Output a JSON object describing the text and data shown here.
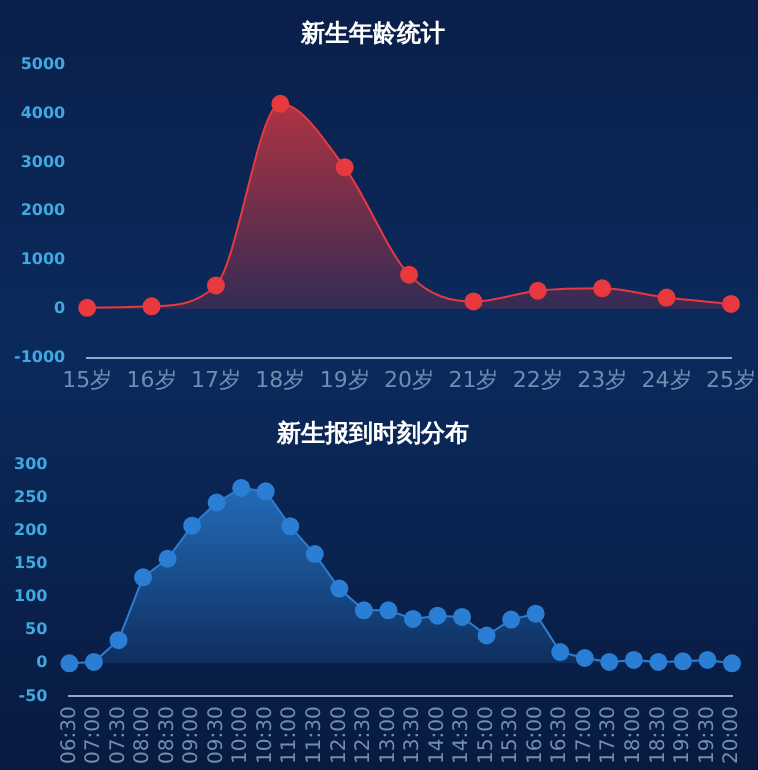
{
  "chart_data": [
    {
      "type": "area",
      "title": "新生年龄统计",
      "categories": [
        "15岁",
        "16岁",
        "17岁",
        "18岁",
        "19岁",
        "20岁",
        "21岁",
        "22岁",
        "23岁",
        "24岁",
        "25岁"
      ],
      "values": [
        20,
        50,
        480,
        4200,
        2900,
        700,
        150,
        370,
        420,
        230,
        100
      ],
      "color": "#e8393f",
      "ylim": [
        -1000,
        5000
      ],
      "yticks": [
        -1000,
        0,
        1000,
        2000,
        3000,
        4000,
        5000
      ],
      "grid": false,
      "legend": false,
      "marker": "circle"
    },
    {
      "type": "area",
      "title": "新生报到时刻分布",
      "categories": [
        "06:30",
        "07:00",
        "07:30",
        "08:00",
        "08:30",
        "09:00",
        "09:30",
        "10:00",
        "10:30",
        "11:00",
        "11:30",
        "12:00",
        "12:30",
        "13:00",
        "13:30",
        "14:00",
        "14:30",
        "15:00",
        "15:30",
        "16:00",
        "16:30",
        "17:00",
        "17:30",
        "18:00",
        "18:30",
        "19:00",
        "19:30",
        "20:00"
      ],
      "values": [
        0,
        2,
        35,
        130,
        158,
        208,
        243,
        265,
        260,
        207,
        165,
        113,
        80,
        80,
        67,
        72,
        70,
        42,
        66,
        75,
        17,
        8,
        2,
        5,
        2,
        3,
        5,
        0
      ],
      "color": "#2a7fd4",
      "ylim": [
        -50,
        300
      ],
      "yticks": [
        -50,
        0,
        50,
        100,
        150,
        200,
        250,
        300
      ],
      "grid": false,
      "legend": false,
      "marker": "circle"
    }
  ]
}
